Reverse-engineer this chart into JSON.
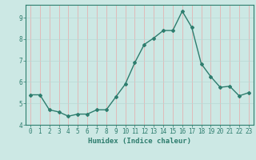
{
  "x": [
    0,
    1,
    2,
    3,
    4,
    5,
    6,
    7,
    8,
    9,
    10,
    11,
    12,
    13,
    14,
    15,
    16,
    17,
    18,
    19,
    20,
    21,
    22,
    23
  ],
  "y": [
    5.4,
    5.4,
    4.7,
    4.6,
    4.4,
    4.5,
    4.5,
    4.7,
    4.7,
    5.3,
    5.9,
    6.9,
    7.75,
    8.05,
    8.4,
    8.4,
    9.3,
    8.55,
    6.85,
    6.25,
    5.75,
    5.8,
    5.35,
    5.5
  ],
  "line_color": "#2e7d6e",
  "marker": "D",
  "marker_size": 2,
  "bg_color": "#cce8e4",
  "vgrid_color": "#e8a8a8",
  "hgrid_color": "#b8d8d4",
  "xlabel": "Humidex (Indice chaleur)",
  "axis_color": "#2e7d6e",
  "xlim": [
    -0.5,
    23.5
  ],
  "ylim": [
    4.0,
    9.6
  ],
  "yticks": [
    4,
    5,
    6,
    7,
    8,
    9
  ],
  "xticks": [
    0,
    1,
    2,
    3,
    4,
    5,
    6,
    7,
    8,
    9,
    10,
    11,
    12,
    13,
    14,
    15,
    16,
    17,
    18,
    19,
    20,
    21,
    22,
    23
  ],
  "label_fontsize": 6.5,
  "tick_fontsize": 5.5
}
